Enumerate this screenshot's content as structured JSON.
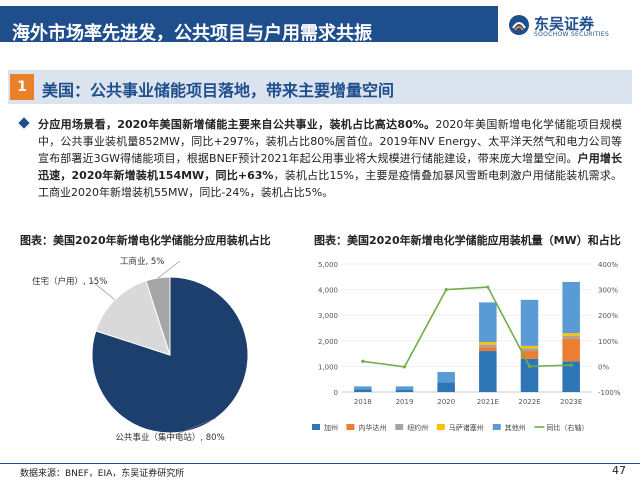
{
  "header": {
    "title": "海外市场率先进发，公共项目与户用需求共振",
    "logo_cn": "东吴证券",
    "logo_en": "SOOCHOW SECURITIES",
    "brand_color": "#1f4e8c"
  },
  "section": {
    "number": "1",
    "title": "美国：公共事业储能项目落地，带来主要增量空间",
    "accent_color": "#e8812a"
  },
  "bullet": {
    "segments": [
      {
        "text": "分应用场景看，2020年美国新增储能主要来自公共事业，装机占比高达80%。",
        "bold": true
      },
      {
        "text": "2020年美国新增电化学储能项目规模中，公共事业装机量852MW，同比+297%，装机占比80%居首位。2019年NV Energy、太平洋天然气和电力公司等宣布部署近3GW得储能项目，根据BNEF预计2021年起公用事业将大规模进行储能建设，带来庞大增量空间。",
        "bold": false
      },
      {
        "text": "户用增长迅速，2020年新增装机154MW，同比+63%",
        "bold": true
      },
      {
        "text": "，装机占比15%，主要是疫情叠加暴风雪断电刺激户用储能装机需求。工商业2020年新增装机55MW，同比-24%，装机占比5%。",
        "bold": false
      }
    ]
  },
  "chart_data": [
    {
      "type": "pie",
      "title": "图表：美国2020年新增电化学储能分应用装机占比",
      "slices": [
        {
          "label": "公共事业（集中电站）, 80%",
          "value": 80,
          "color": "#1c3f6e"
        },
        {
          "label": "住宅（户用）, 15%",
          "value": 15,
          "color": "#d9d9d9"
        },
        {
          "label": "工商业, 5%",
          "value": 5,
          "color": "#a6a6a6"
        }
      ]
    },
    {
      "type": "bar",
      "stacked": true,
      "title": "图表：美国2020年新增电化学储能应用装机量（MW）和占比",
      "categories": [
        "2018",
        "2019",
        "2020",
        "2021E",
        "2022E",
        "2023E"
      ],
      "y_ticks": [
        "0",
        "1,000",
        "2,000",
        "3,000",
        "4,000",
        "5,000"
      ],
      "y2_ticks": [
        "-100%",
        "0%",
        "100%",
        "200%",
        "300%",
        "400%"
      ],
      "ylim": [
        0,
        5000
      ],
      "y2lim": [
        -100,
        400
      ],
      "series": [
        {
          "name": "加州",
          "color": "#2e75b6",
          "values": [
            100,
            80,
            380,
            1600,
            1300,
            1200
          ]
        },
        {
          "name": "内华达州",
          "color": "#ed7d31",
          "values": [
            0,
            0,
            0,
            150,
            300,
            900
          ]
        },
        {
          "name": "纽约州",
          "color": "#a5a5a5",
          "values": [
            0,
            0,
            0,
            100,
            100,
            100
          ]
        },
        {
          "name": "马萨诸塞州",
          "color": "#ffc000",
          "values": [
            0,
            0,
            0,
            100,
            100,
            100
          ]
        },
        {
          "name": "其他州",
          "color": "#5b9bd5",
          "values": [
            120,
            140,
            400,
            1550,
            1800,
            2000
          ]
        }
      ],
      "line": {
        "name": "同比（右轴）",
        "color": "#70ad47",
        "values": [
          20,
          -2,
          300,
          310,
          0,
          5
        ]
      }
    }
  ],
  "footer": {
    "source": "数据来源：BNEF，EIA，东吴证券研究所",
    "page": "47"
  }
}
